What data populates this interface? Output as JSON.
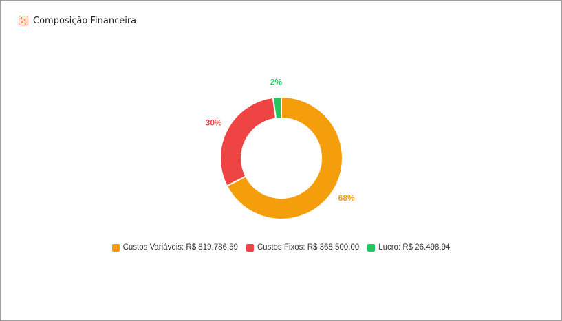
{
  "header": {
    "title": "Composição Financeira",
    "icon": "abacus-icon"
  },
  "chart_data": {
    "type": "pie",
    "variant": "donut",
    "categories": [
      "Custos Variáveis",
      "Custos Fixos",
      "Lucro"
    ],
    "values": [
      819786.59,
      368500.0,
      26498.94
    ],
    "percent_labels": [
      "68%",
      "30%",
      "2%"
    ],
    "colors": [
      "#f59e0b",
      "#ef4444",
      "#22c55e"
    ],
    "legend": [
      {
        "label": "Custos Variáveis: R$ 819.786,59",
        "color": "#f59e0b"
      },
      {
        "label": "Custos Fixos: R$ 368.500,00",
        "color": "#ef4444"
      },
      {
        "label": "Lucro: R$ 26.498,94",
        "color": "#22c55e"
      }
    ],
    "legend_position": "bottom"
  }
}
